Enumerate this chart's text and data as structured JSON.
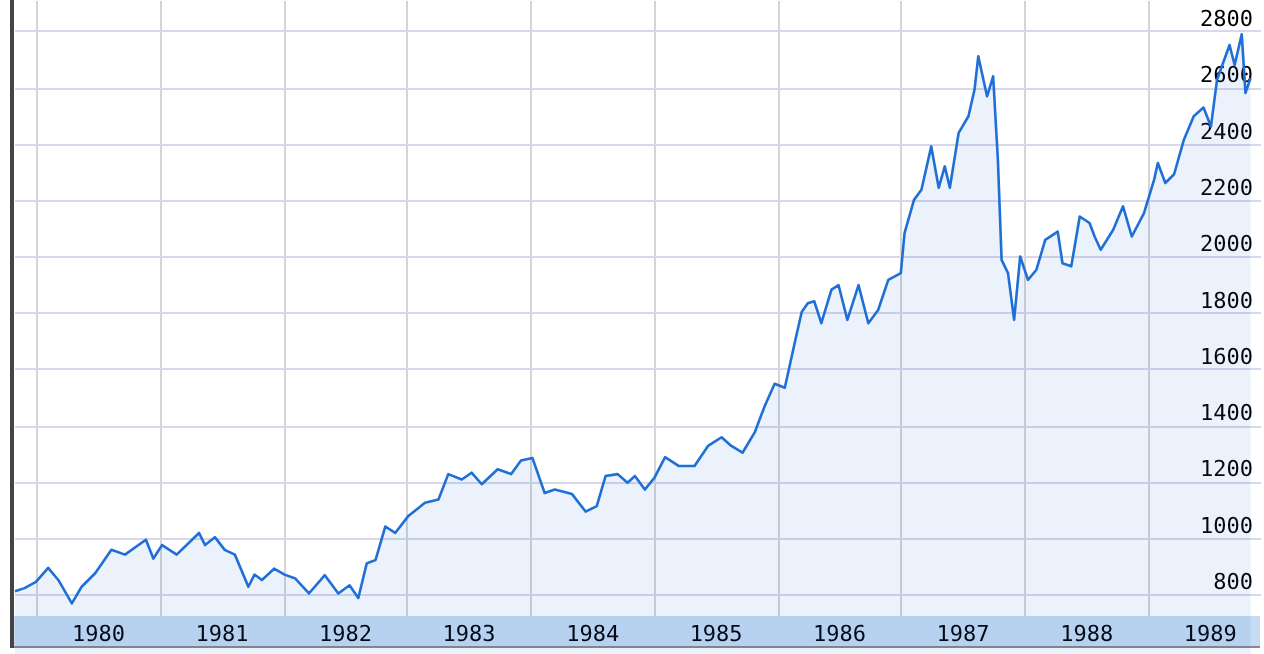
{
  "chart_data": {
    "type": "area",
    "color": "#1f6fd6",
    "grid": true,
    "tick_labels": true,
    "xlim": [
      "1979-10-28",
      "1989-11-28"
    ],
    "xticks": [
      {
        "value": "1980-01-01",
        "label": null
      },
      {
        "value": "1980-07-01",
        "label": "1980"
      },
      {
        "value": "1981-01-01",
        "label": null
      },
      {
        "value": "1981-07-01",
        "label": "1981"
      },
      {
        "value": "1982-01-01",
        "label": null
      },
      {
        "value": "1982-07-01",
        "label": "1982"
      },
      {
        "value": "1983-01-01",
        "label": null
      },
      {
        "value": "1983-07-01",
        "label": "1983"
      },
      {
        "value": "1984-01-01",
        "label": null
      },
      {
        "value": "1984-07-01",
        "label": "1984"
      },
      {
        "value": "1985-01-01",
        "label": null
      },
      {
        "value": "1985-07-01",
        "label": "1985"
      },
      {
        "value": "1986-01-01",
        "label": null
      },
      {
        "value": "1986-07-01",
        "label": "1986"
      },
      {
        "value": "1987-01-01",
        "label": null
      },
      {
        "value": "1987-07-01",
        "label": "1987"
      },
      {
        "value": "1988-01-01",
        "label": null
      },
      {
        "value": "1988-07-01",
        "label": "1988"
      },
      {
        "value": "1989-01-01",
        "label": null
      },
      {
        "value": "1989-07-01",
        "label": "1989"
      }
    ],
    "ylim": [
      722,
      2910
    ],
    "yticks": [
      800,
      1000,
      1200,
      1400,
      1600,
      1800,
      2000,
      2200,
      2400,
      2600,
      2800
    ],
    "x": [
      "1979-10-31",
      "1979-11-28",
      "1980-01-01",
      "1980-02-06",
      "1980-03-07",
      "1980-04-16",
      "1980-05-15",
      "1980-06-24",
      "1980-08-11",
      "1980-09-20",
      "1980-11-21",
      "1980-12-13",
      "1981-01-08",
      "1981-02-20",
      "1981-04-27",
      "1981-05-15",
      "1981-06-13",
      "1981-07-12",
      "1981-08-11",
      "1981-09-20",
      "1981-10-08",
      "1981-10-30",
      "1981-12-05",
      "1982-01-05",
      "1982-02-06",
      "1982-03-18",
      "1982-05-04",
      "1982-06-13",
      "1982-07-16",
      "1982-08-11",
      "1982-09-05",
      "1982-10-01",
      "1982-10-30",
      "1982-11-28",
      "1983-01-05",
      "1983-02-24",
      "1983-04-05",
      "1983-05-04",
      "1983-06-13",
      "1983-07-12",
      "1983-08-11",
      "1983-09-27",
      "1983-11-06",
      "1983-12-05",
      "1984-01-08",
      "1984-02-13",
      "1984-03-14",
      "1984-05-04",
      "1984-06-13",
      "1984-07-16",
      "1984-08-11",
      "1984-09-16",
      "1984-10-15",
      "1984-11-06",
      "1984-12-05",
      "1985-01-02",
      "1985-02-03",
      "1985-03-15",
      "1985-05-01",
      "1985-06-10",
      "1985-07-20",
      "1985-08-18",
      "1985-09-20",
      "1985-10-26",
      "1985-11-25",
      "1985-12-24",
      "1986-01-23",
      "1986-02-24",
      "1986-03-14",
      "1986-04-01",
      "1986-04-20",
      "1986-05-11",
      "1986-06-10",
      "1986-07-01",
      "1986-07-27",
      "1986-08-29",
      "1986-09-27",
      "1986-10-26",
      "1986-11-25",
      "1987-01-01",
      "1987-01-12",
      "1987-02-09",
      "1987-03-03",
      "1987-04-01",
      "1987-04-23",
      "1987-05-11",
      "1987-05-26",
      "1987-06-21",
      "1987-07-20",
      "1987-08-07",
      "1987-08-18",
      "1987-09-13",
      "1987-10-01",
      "1987-10-15",
      "1987-10-26",
      "1987-11-14",
      "1987-12-02",
      "1987-12-20",
      "1988-01-12",
      "1988-02-06",
      "1988-03-03",
      "1988-04-09",
      "1988-04-23",
      "1988-05-19",
      "1988-06-13",
      "1988-07-12",
      "1988-07-27",
      "1988-08-14",
      "1988-09-20",
      "1988-10-19",
      "1988-11-14",
      "1988-12-20",
      "1989-01-19",
      "1989-01-30",
      "1989-02-21",
      "1989-03-19",
      "1989-04-17",
      "1989-05-16",
      "1989-06-14",
      "1989-07-06",
      "1989-07-24",
      "1989-08-30",
      "1989-09-14",
      "1989-10-05",
      "1989-10-16",
      "1989-10-31"
    ],
    "values": [
      810,
      821,
      843,
      893,
      850,
      767,
      826,
      874,
      957,
      940,
      993,
      926,
      974,
      940,
      1017,
      974,
      1002,
      957,
      940,
      826,
      869,
      850,
      890,
      869,
      855,
      802,
      867,
      802,
      831,
      786,
      909,
      921,
      1040,
      1017,
      1076,
      1124,
      1136,
      1226,
      1207,
      1231,
      1190,
      1243,
      1226,
      1274,
      1283,
      1159,
      1171,
      1155,
      1093,
      1112,
      1219,
      1226,
      1195,
      1219,
      1171,
      1212,
      1286,
      1255,
      1255,
      1326,
      1357,
      1326,
      1302,
      1374,
      1469,
      1547,
      1533,
      1707,
      1802,
      1833,
      1840,
      1762,
      1881,
      1897,
      1774,
      1897,
      1762,
      1809,
      1916,
      1940,
      2082,
      2200,
      2236,
      2390,
      2243,
      2319,
      2243,
      2438,
      2497,
      2592,
      2710,
      2568,
      2639,
      2343,
      1987,
      1940,
      1774,
      1999,
      1916,
      1952,
      2058,
      2087,
      1975,
      1964,
      2141,
      2118,
      2070,
      2023,
      2094,
      2177,
      2070,
      2153,
      2272,
      2331,
      2260,
      2291,
      2414,
      2497,
      2528,
      2461,
      2627,
      2750,
      2679,
      2788,
      2580,
      2632
    ]
  }
}
